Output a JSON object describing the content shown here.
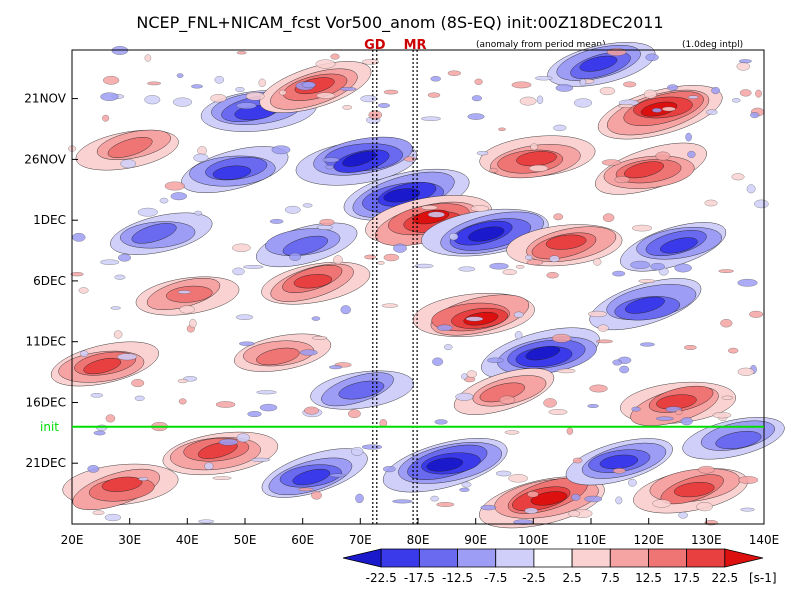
{
  "chart_data": {
    "type": "heatmap",
    "title": "NCEP_FNL+NICAM_fcst Vor500_anom (8S-EQ) init:00Z18DEC2011",
    "subtitle_left": "(anomaly from period mean)",
    "subtitle_right": "(1.0deg intpl)",
    "xlabel": "",
    "ylabel": "",
    "x_ticks": [
      "20E",
      "30E",
      "40E",
      "50E",
      "60E",
      "70E",
      "80E",
      "90E",
      "100E",
      "110E",
      "120E",
      "130E",
      "140E"
    ],
    "x_range": [
      20,
      140
    ],
    "y_ticks": [
      "21NOV",
      "26NOV",
      "1DEC",
      "6DEC",
      "11DEC",
      "16DEC",
      "21DEC"
    ],
    "time_range": [
      "17NOV2011",
      "26DEC2011"
    ],
    "reference_lines": [
      {
        "label": "GD",
        "lon": 72.5,
        "color": "#cc0000"
      },
      {
        "label": "MR",
        "lon": 79.5,
        "color": "#cc0000"
      }
    ],
    "init_line": {
      "label": "init",
      "date": "18DEC2011",
      "color": "#00dd00"
    },
    "colorbar": {
      "levels": [
        "-22.5",
        "-17.5",
        "-12.5",
        "-7.5",
        "-2.5",
        "2.5",
        "7.5",
        "12.5",
        "17.5",
        "22.5"
      ],
      "unit": "[s-1]",
      "colors": [
        "#1a1acc",
        "#3a3aea",
        "#6a6af0",
        "#9d9df5",
        "#cfcffa",
        "#ffffff",
        "#fbd2d2",
        "#f5a3a3",
        "#ef7575",
        "#e84040",
        "#dd1010"
      ]
    },
    "features": [
      {
        "lon": 52,
        "date": "22NOV",
        "sign": "neg",
        "strength": 0.8
      },
      {
        "lon": 62,
        "date": "20NOV",
        "sign": "pos",
        "strength": 0.8
      },
      {
        "lon": 122,
        "date": "22NOV",
        "sign": "pos",
        "strength": 1.0
      },
      {
        "lon": 112,
        "date": "18NOV",
        "sign": "neg",
        "strength": 0.7
      },
      {
        "lon": 30,
        "date": "25NOV",
        "sign": "pos",
        "strength": 0.6
      },
      {
        "lon": 70,
        "date": "26NOV",
        "sign": "neg",
        "strength": 0.9
      },
      {
        "lon": 100,
        "date": "26NOV",
        "sign": "pos",
        "strength": 0.8
      },
      {
        "lon": 120,
        "date": "27NOV",
        "sign": "pos",
        "strength": 0.8
      },
      {
        "lon": 48,
        "date": "27NOV",
        "sign": "neg",
        "strength": 0.7
      },
      {
        "lon": 78,
        "date": "29NOV",
        "sign": "neg",
        "strength": 1.0
      },
      {
        "lon": 82,
        "date": "1DEC",
        "sign": "pos",
        "strength": 1.0
      },
      {
        "lon": 92,
        "date": "2DEC",
        "sign": "neg",
        "strength": 1.0
      },
      {
        "lon": 106,
        "date": "3DEC",
        "sign": "pos",
        "strength": 0.8
      },
      {
        "lon": 125,
        "date": "3DEC",
        "sign": "neg",
        "strength": 0.7
      },
      {
        "lon": 60,
        "date": "3DEC",
        "sign": "neg",
        "strength": 0.6
      },
      {
        "lon": 35,
        "date": "2DEC",
        "sign": "neg",
        "strength": 0.6
      },
      {
        "lon": 62,
        "date": "6DEC",
        "sign": "pos",
        "strength": 0.7
      },
      {
        "lon": 40,
        "date": "7DEC",
        "sign": "pos",
        "strength": 0.6
      },
      {
        "lon": 90,
        "date": "9DEC",
        "sign": "pos",
        "strength": 0.9
      },
      {
        "lon": 120,
        "date": "8DEC",
        "sign": "neg",
        "strength": 0.8
      },
      {
        "lon": 102,
        "date": "12DEC",
        "sign": "neg",
        "strength": 0.9
      },
      {
        "lon": 25,
        "date": "13DEC",
        "sign": "pos",
        "strength": 0.7
      },
      {
        "lon": 56,
        "date": "12DEC",
        "sign": "pos",
        "strength": 0.5
      },
      {
        "lon": 70,
        "date": "15DEC",
        "sign": "neg",
        "strength": 0.6
      },
      {
        "lon": 125,
        "date": "16DEC",
        "sign": "pos",
        "strength": 0.8
      },
      {
        "lon": 95,
        "date": "15DEC",
        "sign": "pos",
        "strength": 0.6
      },
      {
        "lon": 85,
        "date": "21DEC",
        "sign": "neg",
        "strength": 1.0
      },
      {
        "lon": 102,
        "date": "24DEC",
        "sign": "pos",
        "strength": 1.0
      },
      {
        "lon": 128,
        "date": "23DEC",
        "sign": "pos",
        "strength": 0.8
      },
      {
        "lon": 45,
        "date": "20DEC",
        "sign": "pos",
        "strength": 0.8
      },
      {
        "lon": 28,
        "date": "23DEC",
        "sign": "pos",
        "strength": 0.8
      },
      {
        "lon": 62,
        "date": "22DEC",
        "sign": "neg",
        "strength": 0.7
      },
      {
        "lon": 115,
        "date": "21DEC",
        "sign": "neg",
        "strength": 0.7
      },
      {
        "lon": 135,
        "date": "19DEC",
        "sign": "neg",
        "strength": 0.6
      }
    ]
  }
}
